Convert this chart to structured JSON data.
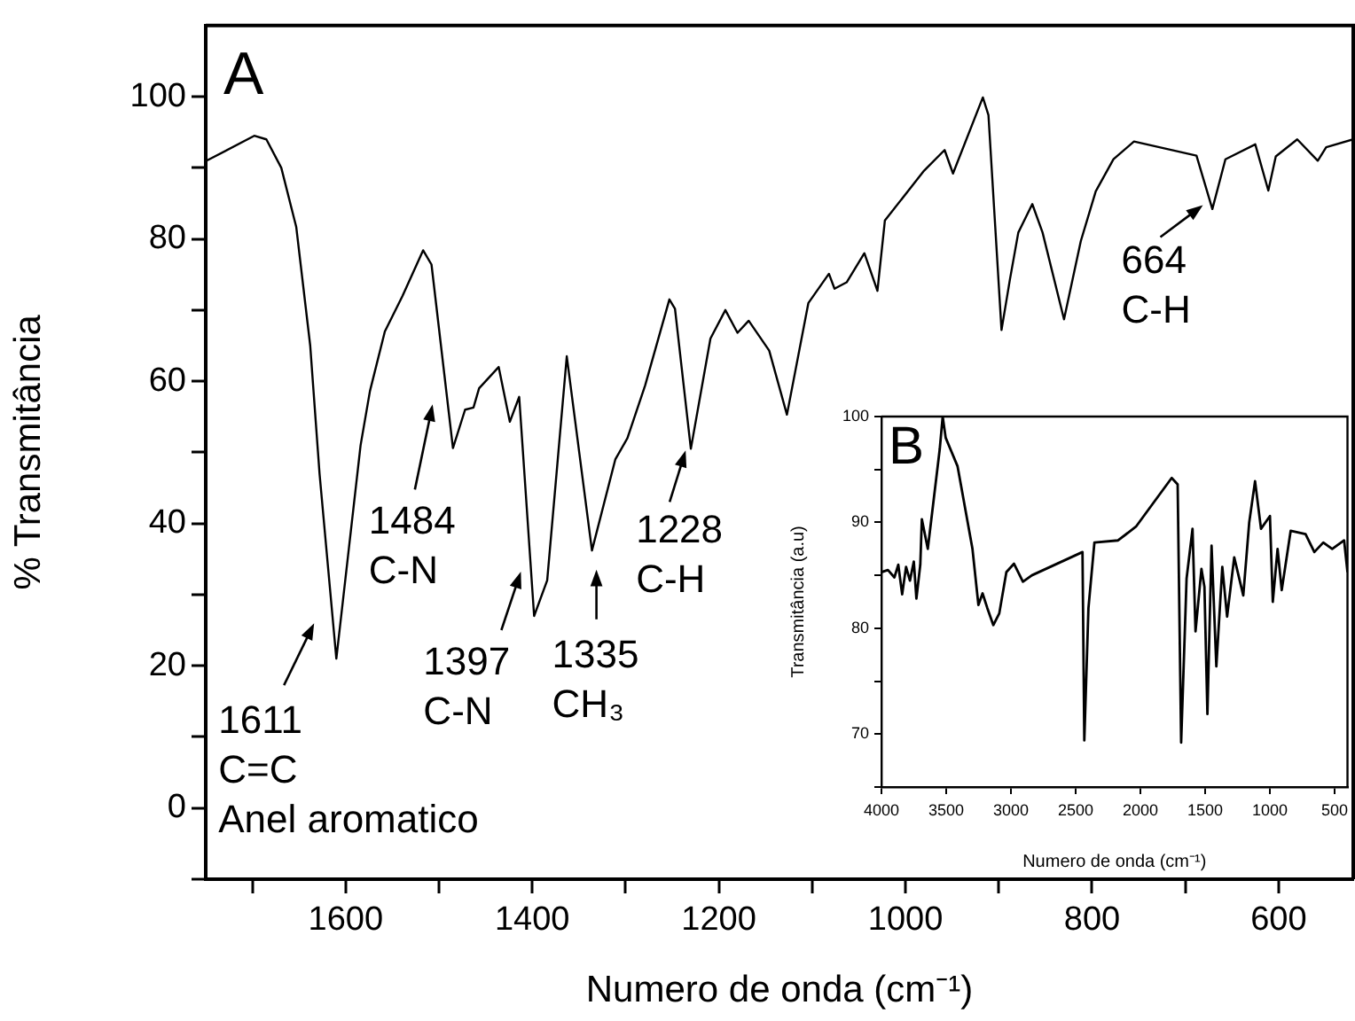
{
  "chart_data": [
    {
      "type": "line",
      "title": "A",
      "xlabel": "Numero de onda (cm⁻¹)",
      "ylabel": "% Transmitância",
      "xlim": [
        1750,
        520
      ],
      "xticks": [
        1600,
        1400,
        1200,
        1000,
        800,
        600,
        {
          "value": 1700,
          "label": null
        },
        {
          "value": 1500,
          "label": null
        },
        {
          "value": 1300,
          "label": null
        },
        {
          "value": 1100,
          "label": null
        },
        {
          "value": 900,
          "label": null
        },
        {
          "value": 700,
          "label": null
        }
      ],
      "ylim": [
        -10,
        110
      ],
      "yticks": [
        0,
        20,
        40,
        60,
        80,
        100,
        {
          "value": -10,
          "label": null
        },
        {
          "value": 10,
          "label": null
        },
        {
          "value": 30,
          "label": null
        },
        {
          "value": 50,
          "label": null
        },
        {
          "value": 70,
          "label": null
        },
        {
          "value": 90,
          "label": null
        }
      ],
      "series": [
        {
          "color": "#000000",
          "x": [
            1749,
            1698,
            1685,
            1669,
            1653,
            1638,
            1628,
            1610,
            1584,
            1574,
            1558,
            1539,
            1517,
            1508,
            1485,
            1472,
            1463,
            1457,
            1436,
            1424,
            1414,
            1398,
            1384,
            1363,
            1336,
            1311,
            1298,
            1279,
            1253,
            1247,
            1230,
            1209,
            1193,
            1180,
            1168,
            1146,
            1127,
            1104,
            1082,
            1076,
            1063,
            1044,
            1030,
            1022,
            980,
            958,
            949,
            917,
            911,
            897,
            888,
            879,
            864,
            853,
            830,
            812,
            796,
            777,
            755,
            688,
            671,
            657,
            625,
            611,
            603,
            580,
            558,
            549,
            520
          ],
          "values": [
            91,
            94.5,
            94,
            90,
            81.7,
            65,
            47,
            21,
            51,
            58.6,
            67,
            72,
            78.4,
            76.4,
            50.6,
            56,
            56.3,
            59,
            62,
            54.3,
            57.8,
            27,
            32,
            63.5,
            36.2,
            49,
            52,
            59.4,
            71.5,
            70.2,
            50.5,
            66,
            70,
            66.8,
            68.5,
            64.3,
            55.3,
            71,
            75.1,
            73,
            73.9,
            78,
            72.7,
            82.6,
            89.6,
            92.5,
            89.2,
            99.9,
            97.4,
            67.2,
            74.3,
            80.9,
            84.9,
            80.9,
            68.7,
            79.7,
            86.7,
            91.2,
            93.7,
            91.7,
            84.2,
            91.2,
            93.3,
            86.8,
            91.6,
            94,
            91,
            92.9,
            94
          ]
        }
      ],
      "annotations": [
        {
          "text": "1611\nC=C\nAnel aromatico",
          "x": 1611,
          "y": 21
        },
        {
          "text": "1484\nC-N",
          "x": 1484,
          "y": 51
        },
        {
          "text": "1397\nC-N",
          "x": 1397,
          "y": 27
        },
        {
          "text": "1335\nCH₃",
          "x": 1335,
          "y": 36
        },
        {
          "text": "1228\nC-H",
          "x": 1228,
          "y": 51
        },
        {
          "text": "664\nC-H",
          "x": 664,
          "y": 84
        }
      ]
    },
    {
      "type": "line",
      "title": "B",
      "xlabel": "Numero de onda (cm⁻¹)",
      "ylabel": "Transmitância (a.u)",
      "xlim": [
        4000,
        400
      ],
      "xticks": [
        4000,
        3500,
        3000,
        2500,
        2000,
        1500,
        1000,
        500
      ],
      "ylim": [
        65,
        100
      ],
      "yticks": [
        70,
        80,
        90,
        100,
        {
          "value": 75,
          "label": null
        },
        {
          "value": 85,
          "label": null
        },
        {
          "value": 95,
          "label": null
        },
        {
          "value": 65,
          "label": null
        }
      ],
      "series": [
        {
          "color": "#000000",
          "x": [
            4000,
            3950,
            3900,
            3870,
            3840,
            3810,
            3780,
            3750,
            3730,
            3700,
            3688,
            3642,
            3550,
            3527,
            3504,
            3412,
            3297,
            3251,
            3219,
            3182,
            3136,
            3090,
            3035,
            2976,
            2907,
            2838,
            2447,
            2433,
            2401,
            2355,
            2172,
            2034,
            1758,
            1712,
            1685,
            1643,
            1597,
            1574,
            1528,
            1505,
            1482,
            1450,
            1413,
            1367,
            1330,
            1275,
            1205,
            1159,
            1114,
            1068,
            999,
            977,
            940,
            908,
            839,
            724,
            656,
            587,
            518,
            426,
            400
          ],
          "values": [
            85.3,
            85.5,
            84.8,
            86,
            83.2,
            85.8,
            84.5,
            86.3,
            82.8,
            86,
            90.3,
            87.5,
            96.9,
            100,
            98,
            95.3,
            87.5,
            82.2,
            83.3,
            81.9,
            80.3,
            81.4,
            85.3,
            86.1,
            84.4,
            85,
            87.2,
            69.4,
            81.9,
            88.1,
            88.3,
            89.6,
            94.2,
            93.6,
            69.2,
            84.7,
            89.4,
            79.7,
            85.6,
            83.9,
            71.9,
            87.8,
            76.4,
            85.8,
            81.1,
            86.7,
            83.1,
            90,
            93.9,
            89.4,
            90.6,
            82.5,
            87.5,
            83.6,
            89.2,
            88.9,
            87.2,
            88.1,
            87.5,
            88.3,
            85.3
          ]
        }
      ]
    }
  ]
}
